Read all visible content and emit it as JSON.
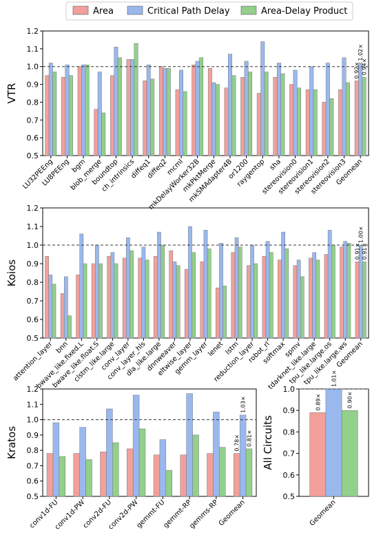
{
  "colors": {
    "area": "#f2a09c",
    "delay": "#9ab8ee",
    "adp": "#92d08b"
  },
  "legend": {
    "placement": "top-center",
    "items": [
      {
        "key": "area",
        "label": "Area"
      },
      {
        "key": "delay",
        "label": "Critical Path Delay"
      },
      {
        "key": "adp",
        "label": "Area-Delay Product"
      }
    ]
  },
  "chart_data": [
    {
      "type": "bar",
      "ylabel": "VTR",
      "ylim": [
        0.5,
        1.2
      ],
      "yticks": [
        "0.5",
        "0.6",
        "0.7",
        "0.8",
        "0.9",
        "1.0",
        "1.1",
        "1.2"
      ],
      "reference_line": 1.0,
      "categories": [
        "LU32PEEng",
        "LU8PEEng",
        "bgm",
        "blob_merge",
        "boundtop",
        "ch_intrinsics",
        "diffeq1",
        "diffeq2",
        "mcml",
        "mkDelayWorker32B",
        "mkPktMerge",
        "mkSMAdapter4B",
        "or1200",
        "raygentop",
        "sha",
        "stereovision0",
        "stereovision1",
        "stereovision2",
        "stereovision3",
        "Geomean"
      ],
      "series": [
        {
          "name": "Area",
          "key": "area",
          "values": [
            0.95,
            0.94,
            1.0,
            0.76,
            0.95,
            1.04,
            0.92,
            1.0,
            0.87,
            1.01,
            0.99,
            0.88,
            0.94,
            0.85,
            0.94,
            0.9,
            0.87,
            0.8,
            0.87,
            0.92
          ]
        },
        {
          "name": "Critical Path Delay",
          "key": "delay",
          "values": [
            1.02,
            1.01,
            1.01,
            0.97,
            1.11,
            1.04,
            1.01,
            0.99,
            0.98,
            1.03,
            0.91,
            1.07,
            1.03,
            1.14,
            1.02,
            0.98,
            1.0,
            1.02,
            1.05,
            1.02
          ]
        },
        {
          "name": "Area-Delay Product",
          "key": "adp",
          "values": [
            0.97,
            0.95,
            1.01,
            0.74,
            1.05,
            1.13,
            0.93,
            0.99,
            0.86,
            1.05,
            0.9,
            0.95,
            0.97,
            0.97,
            0.96,
            0.88,
            0.87,
            0.82,
            0.91,
            0.94
          ]
        }
      ],
      "annotations": [
        "0.92×",
        "1.02×",
        "0.94×"
      ]
    },
    {
      "type": "bar",
      "ylabel": "Koios",
      "ylim": [
        0.5,
        1.2
      ],
      "yticks": [
        "0.5",
        "0.6",
        "0.7",
        "0.8",
        "0.9",
        "1.0",
        "1.1",
        "1.2"
      ],
      "reference_line": 1.0,
      "categories": [
        "attention_layer",
        "bnn",
        "bwave_like.fixed.L",
        "bwave_like.float.S",
        "clstm_like.large",
        "conv_layer",
        "conv_layer_hls",
        "dla_like.large",
        "dnnweaver",
        "eltwise_layer",
        "gemm_layer",
        "lenet",
        "lstm",
        "reduction_layer",
        "robot_rl",
        "softmax",
        "spmv",
        "tdarknet_like.large",
        "tpu_like.large.os",
        "tpu_like.large.ws",
        "Geomean"
      ],
      "series": [
        {
          "name": "Area",
          "key": "area",
          "values": [
            0.94,
            0.74,
            0.84,
            0.9,
            0.94,
            0.93,
            0.93,
            0.94,
            0.97,
            0.87,
            0.91,
            0.77,
            0.96,
            0.89,
            0.94,
            0.92,
            0.89,
            0.93,
            0.95,
            0.99,
            0.91
          ]
        },
        {
          "name": "Critical Path Delay",
          "key": "delay",
          "values": [
            0.84,
            0.83,
            1.06,
            1.0,
            0.96,
            1.04,
            0.99,
            1.07,
            0.91,
            1.1,
            1.08,
            1.01,
            1.04,
            1.0,
            1.02,
            1.07,
            0.92,
            0.96,
            1.08,
            1.02,
            1.0
          ]
        },
        {
          "name": "Area-Delay Product",
          "key": "adp",
          "values": [
            0.79,
            0.62,
            0.9,
            0.9,
            0.9,
            0.97,
            0.92,
            1.0,
            0.89,
            0.96,
            0.98,
            0.78,
            0.99,
            0.9,
            0.96,
            0.98,
            0.83,
            0.92,
            1.0,
            1.01,
            0.91
          ]
        }
      ],
      "annotations": [
        "0.91×",
        "1.00×",
        "0.91×"
      ]
    },
    {
      "type": "bar",
      "ylabel": "Kratos",
      "ylim": [
        0.5,
        1.2
      ],
      "yticks": [
        "0.5",
        "0.6",
        "0.7",
        "0.8",
        "0.9",
        "1.0",
        "1.1",
        "1.2"
      ],
      "reference_line": 1.0,
      "categories": [
        "conv1d-FU",
        "conv1d-PW",
        "conv2d-FU",
        "conv2d-PW",
        "gemmt-FU",
        "gemmt-RP",
        "gemms-RP",
        "Geomean"
      ],
      "series": [
        {
          "name": "Area",
          "key": "area",
          "values": [
            0.78,
            0.78,
            0.79,
            0.81,
            0.77,
            0.77,
            0.78,
            0.78
          ]
        },
        {
          "name": "Critical Path Delay",
          "key": "delay",
          "values": [
            0.98,
            0.95,
            1.07,
            1.16,
            0.87,
            1.17,
            1.05,
            1.03
          ]
        },
        {
          "name": "Area-Delay Product",
          "key": "adp",
          "values": [
            0.76,
            0.74,
            0.85,
            0.94,
            0.67,
            0.9,
            0.82,
            0.81
          ]
        }
      ],
      "annotations": [
        "0.78×",
        "1.03×",
        "0.81×"
      ]
    },
    {
      "type": "bar",
      "ylabel": "All Circuits",
      "ylim": [
        0.5,
        1.0
      ],
      "yticks": [
        "0.5",
        "0.6",
        "0.7",
        "0.8",
        "0.9",
        "1.0"
      ],
      "reference_line": 1.0,
      "categories": [
        "Geomean"
      ],
      "series": [
        {
          "name": "Area",
          "key": "area",
          "values": [
            0.89
          ]
        },
        {
          "name": "Critical Path Delay",
          "key": "delay",
          "values": [
            1.01
          ]
        },
        {
          "name": "Area-Delay Product",
          "key": "adp",
          "values": [
            0.9
          ]
        }
      ],
      "annotations": [
        "0.89×",
        "1.01×",
        "0.90×"
      ]
    }
  ]
}
